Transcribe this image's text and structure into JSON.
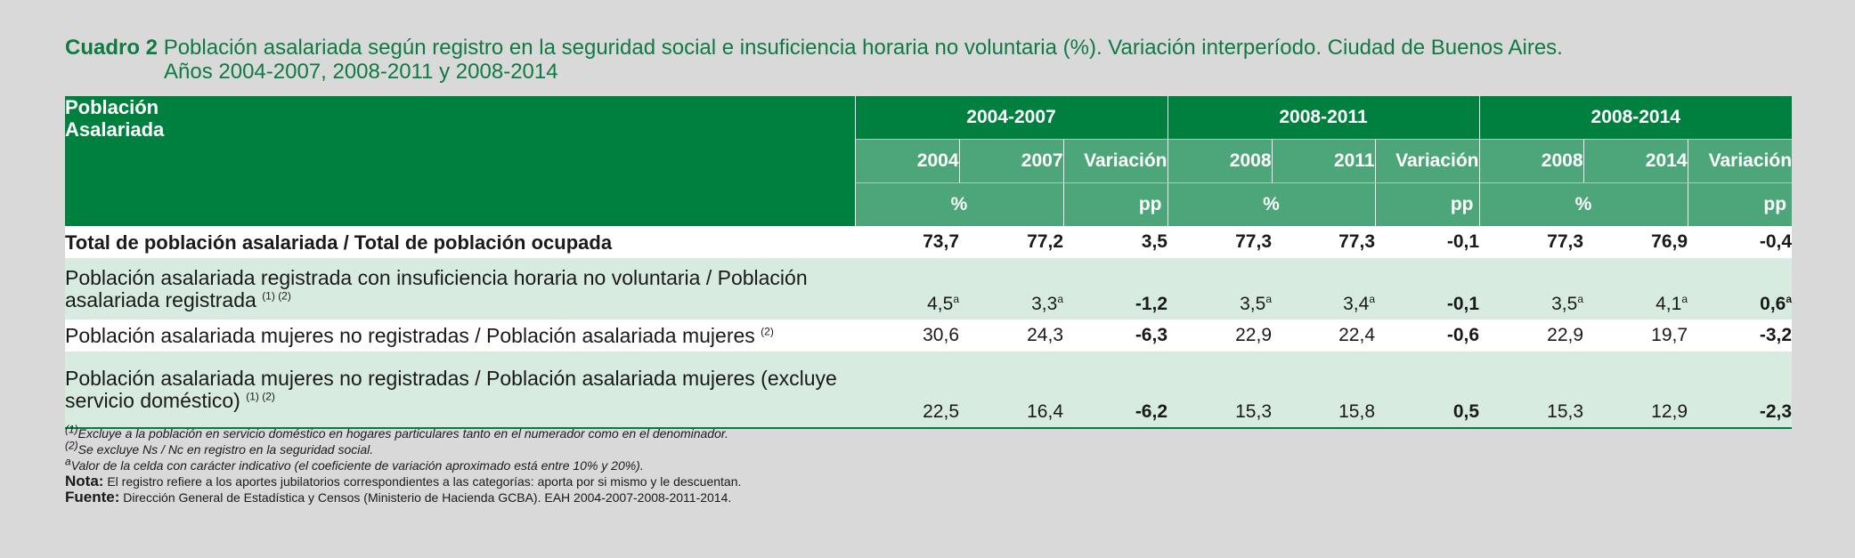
{
  "title": {
    "label": "Cuadro 2",
    "text": "Población asalariada según registro en la seguridad social e insuficiencia horaria no voluntaria (%). Variación interperíodo. Ciudad de Buenos Aires.",
    "line2": "Años 2004-2007, 2008-2011 y 2008-2014"
  },
  "header": {
    "col1_line1": "Población",
    "col1_line2": "Asalariada",
    "groups": [
      "2004-2007",
      "2008-2011",
      "2008-2014"
    ],
    "subcols": [
      "2004",
      "2007",
      "Variación",
      "2008",
      "2011",
      "Variación",
      "2008",
      "2014",
      "Variación"
    ],
    "unit_pct": "%",
    "unit_pp": "pp"
  },
  "rows": [
    {
      "label": "Total de población asalariada / Total de población ocupada",
      "label_sup": "",
      "values": [
        "73,7",
        "77,2",
        "3,5",
        "77,3",
        "77,3",
        "-0,1",
        "77,3",
        "76,9",
        "-0,4"
      ],
      "sups": [
        "",
        "",
        "",
        "",
        "",
        "",
        "",
        "",
        ""
      ]
    },
    {
      "label": "Población asalariada registrada con insuficiencia horaria no voluntaria / Población asalariada registrada",
      "label_sup": "(1) (2)",
      "values": [
        "4,5",
        "3,3",
        "-1,2",
        "3,5",
        "3,4",
        "-0,1",
        "3,5",
        "4,1",
        "0,6"
      ],
      "sups": [
        "a",
        "a",
        "",
        "a",
        "a",
        "",
        "a",
        "a",
        "a"
      ]
    },
    {
      "label": "Población asalariada mujeres no registradas / Población asalariada mujeres",
      "label_sup": "(2)",
      "values": [
        "30,6",
        "24,3",
        "-6,3",
        "22,9",
        "22,4",
        "-0,6",
        "22,9",
        "19,7",
        "-3,2"
      ],
      "sups": [
        "",
        "",
        "",
        "",
        "",
        "",
        "",
        "",
        ""
      ]
    },
    {
      "label": "Población asalariada mujeres no registradas / Población asalariada mujeres (excluye servicio doméstico)",
      "label_sup": "(1) (2)",
      "values": [
        "22,5",
        "16,4",
        "-6,2",
        "15,3",
        "15,8",
        "0,5",
        "15,3",
        "12,9",
        "-2,3"
      ],
      "sups": [
        "",
        "",
        "",
        "",
        "",
        "",
        "",
        "",
        ""
      ]
    }
  ],
  "notes": {
    "n1_mark": "(1)",
    "n1": "Excluye a la población en servicio doméstico en hogares particulares tanto en el numerador como en el denominador.",
    "n2_mark": "(2)",
    "n2": "Se excluye Ns / Nc en registro en la seguridad social.",
    "na_mark": "a",
    "na": "Valor de la celda con carácter indicativo (el coeficiente de variación aproximado está entre 10% y 20%).",
    "nota_label": "Nota:",
    "nota": "El registro refiere a los aportes jubilatorios correspondientes a las categorías: aporta por si mismo y le descuentan.",
    "fuente_label": "Fuente:",
    "fuente": "Dirección General de Estadística y Censos (Ministerio de Hacienda GCBA). EAH 2004-2007-2008-2011-2014."
  },
  "colors": {
    "header_dark": "#00803f",
    "header_light": "#4da67a",
    "row_alt": "#d7ebe1",
    "title": "#0f7a43"
  }
}
